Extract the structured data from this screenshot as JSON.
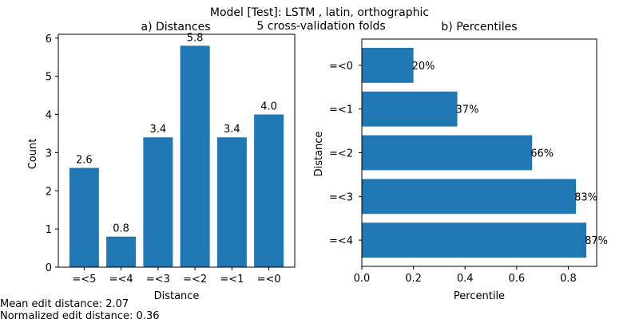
{
  "figure": {
    "title_line1": "Model [Test]: LSTM , latin, orthographic",
    "title_line2": "5 cross-validation folds"
  },
  "footer": {
    "mean_edit": "Mean edit distance: 2.07",
    "normalized_edit": "Normalized edit distance: 0.36"
  },
  "colors": {
    "bar": "#1f77b4"
  },
  "chart_data": [
    {
      "type": "bar",
      "title": "a) Distances",
      "xlabel": "Distance",
      "ylabel": "Count",
      "categories": [
        "=<5",
        "=<4",
        "=<3",
        "=<2",
        "=<1",
        "=<0"
      ],
      "values": [
        2.6,
        0.8,
        3.4,
        5.8,
        3.4,
        4.0
      ],
      "value_labels": [
        "2.6",
        "0.8",
        "3.4",
        "5.8",
        "3.4",
        "4.0"
      ],
      "ylim": [
        0,
        6.1
      ],
      "yticks": [
        0,
        1,
        2,
        3,
        4,
        5,
        6
      ],
      "ytick_labels": [
        "0",
        "1",
        "2",
        "3",
        "4",
        "5",
        "6"
      ],
      "grid": false
    },
    {
      "type": "bar",
      "orientation": "horizontal",
      "title": "b) Percentiles",
      "xlabel": "Percentile",
      "ylabel": "Distance",
      "categories": [
        "=<0",
        "=<1",
        "=<2",
        "=<3",
        "=<4"
      ],
      "values": [
        0.2,
        0.37,
        0.66,
        0.83,
        0.87
      ],
      "value_labels": [
        "20%",
        "37%",
        "66%",
        "83%",
        "87%"
      ],
      "xlim": [
        0,
        0.91
      ],
      "xticks": [
        0.0,
        0.2,
        0.4,
        0.6,
        0.8
      ],
      "xtick_labels": [
        "0.0",
        "0.2",
        "0.4",
        "0.6",
        "0.8"
      ],
      "grid": false
    }
  ]
}
